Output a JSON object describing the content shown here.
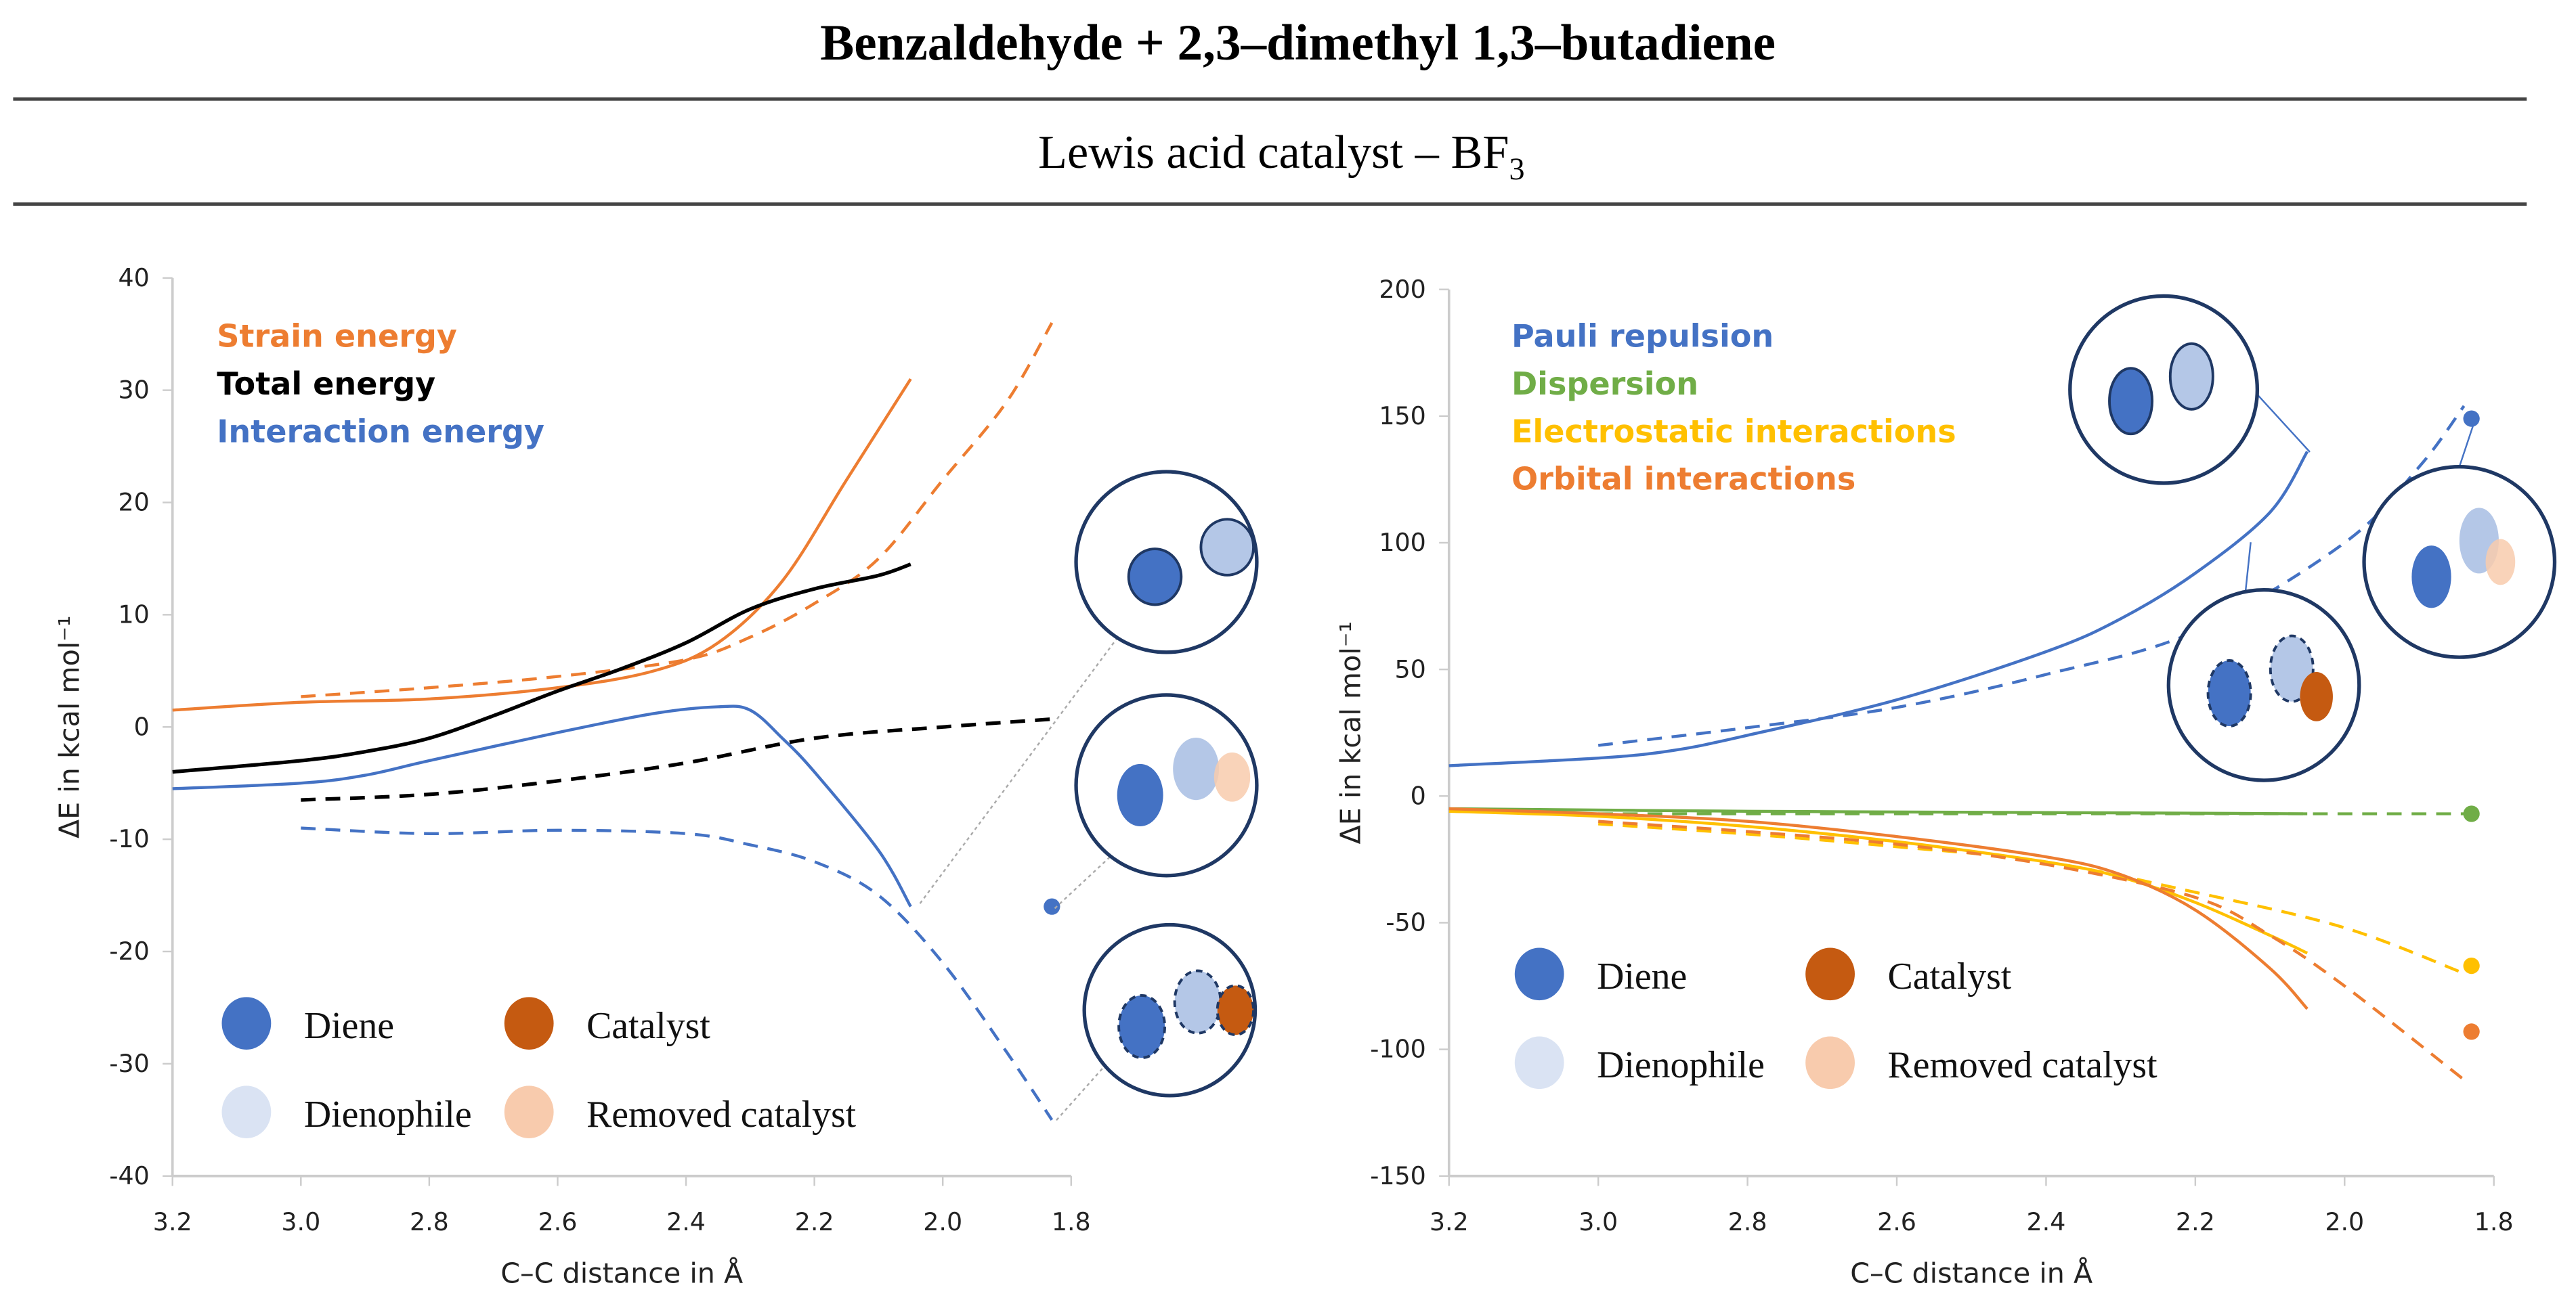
{
  "title": "Benzaldehyde + 2,3–dimethyl 1,3–butadiene",
  "subtitle": "Lewis acid catalyst – BF",
  "subtitle_sub": "3",
  "colors": {
    "blue": "#4472C4",
    "orange": "#ED7D31",
    "green": "#70AD47",
    "yellow": "#FFC000",
    "black": "#000000",
    "catalyst": "#C55A11",
    "dienophile": "#DAE3F3",
    "dienophile_inset": "#B4C7E7",
    "removed": "#F8CBAD",
    "outline": "#1F3864"
  },
  "component_legend": [
    "Diene",
    "Catalyst",
    "Dienophile",
    "Removed catalyst"
  ],
  "chart_data": [
    {
      "type": "line",
      "xlabel": "C–C distance in Å",
      "ylabel": "ΔE in kcal mol⁻¹",
      "xlim": [
        3.2,
        1.8
      ],
      "ylim": [
        -40,
        40
      ],
      "xticks": [
        "3.2",
        "3.0",
        "2.8",
        "2.6",
        "2.4",
        "2.2",
        "2.0",
        "1.8"
      ],
      "yticks": [
        "40",
        "30",
        "20",
        "10",
        "0",
        "-10",
        "-20",
        "-30",
        "-40"
      ],
      "legend": [
        "Strain energy",
        "Total energy",
        "Interaction energy"
      ],
      "series": [
        {
          "name": "Strain energy",
          "color": "orange",
          "dash": false,
          "x": [
            3.2,
            3.0,
            2.8,
            2.6,
            2.45,
            2.35,
            2.25,
            2.15,
            2.05
          ],
          "y": [
            1.5,
            2.2,
            2.5,
            3.5,
            5,
            7.5,
            13,
            22,
            31
          ]
        },
        {
          "name": "Strain energy (removed catalyst)",
          "color": "orange",
          "dash": true,
          "x": [
            3.0,
            2.8,
            2.6,
            2.4,
            2.3,
            2.2,
            2.1,
            2.0,
            1.9,
            1.83
          ],
          "y": [
            2.7,
            3.5,
            4.5,
            6,
            8,
            11,
            15,
            22,
            29,
            36
          ]
        },
        {
          "name": "Total energy",
          "color": "black",
          "dash": false,
          "x": [
            3.2,
            3.0,
            2.9,
            2.8,
            2.7,
            2.6,
            2.5,
            2.4,
            2.3,
            2.2,
            2.1,
            2.05
          ],
          "y": [
            -4,
            -3,
            -2.2,
            -1,
            1,
            3.2,
            5.2,
            7.5,
            10.5,
            12.3,
            13.5,
            14.5
          ]
        },
        {
          "name": "Total energy (removed catalyst)",
          "color": "black",
          "dash": true,
          "x": [
            3.0,
            2.8,
            2.6,
            2.4,
            2.2,
            2.0,
            1.83
          ],
          "y": [
            -6.5,
            -6,
            -4.8,
            -3.2,
            -1,
            0,
            0.7
          ]
        },
        {
          "name": "Interaction energy",
          "color": "blue",
          "dash": false,
          "x": [
            3.2,
            3.0,
            2.9,
            2.8,
            2.6,
            2.45,
            2.35,
            2.3,
            2.25,
            2.2,
            2.1,
            2.05
          ],
          "y": [
            -5.5,
            -5,
            -4.3,
            -3,
            -0.5,
            1.2,
            1.8,
            1.5,
            -1,
            -4,
            -11,
            -16
          ]
        },
        {
          "name": "Interaction energy (removed catalyst)",
          "color": "blue",
          "dash": true,
          "x": [
            3.0,
            2.8,
            2.6,
            2.4,
            2.3,
            2.2,
            2.1,
            2.0,
            1.9,
            1.83
          ],
          "y": [
            -9,
            -9.5,
            -9.2,
            -9.5,
            -10.5,
            -12,
            -15,
            -21,
            -29,
            -35
          ]
        }
      ],
      "points": [
        {
          "x": 1.83,
          "y": -16,
          "color": "blue"
        }
      ]
    },
    {
      "type": "line",
      "xlabel": "C–C distance in Å",
      "ylabel": "ΔE in kcal mol⁻¹",
      "xlim": [
        3.2,
        1.8
      ],
      "ylim": [
        -150,
        200
      ],
      "xticks": [
        "3.2",
        "3.0",
        "2.8",
        "2.6",
        "2.4",
        "2.2",
        "2.0",
        "1.8"
      ],
      "yticks": [
        "200",
        "150",
        "100",
        "50",
        "0",
        "-50",
        "-100",
        "-150"
      ],
      "legend": [
        "Pauli repulsion",
        "Dispersion",
        "Electrostatic interactions",
        "Orbital interactions"
      ],
      "series": [
        {
          "name": "Pauli repulsion",
          "color": "blue",
          "dash": false,
          "x": [
            3.2,
            3.0,
            2.9,
            2.8,
            2.6,
            2.4,
            2.3,
            2.2,
            2.1,
            2.05
          ],
          "y": [
            12,
            15,
            18,
            24,
            38,
            57,
            70,
            88,
            112,
            136
          ]
        },
        {
          "name": "Pauli repulsion (removed catalyst)",
          "color": "blue",
          "dash": true,
          "x": [
            3.0,
            2.8,
            2.6,
            2.4,
            2.2,
            2.0,
            1.9,
            1.84
          ],
          "y": [
            20,
            27,
            35,
            48,
            65,
            100,
            130,
            154
          ]
        },
        {
          "name": "Dispersion",
          "color": "green",
          "dash": false,
          "x": [
            3.2,
            2.8,
            2.4,
            2.05
          ],
          "y": [
            -5,
            -6,
            -6.5,
            -7
          ]
        },
        {
          "name": "Dispersion (removed catalyst)",
          "color": "green",
          "dash": true,
          "x": [
            3.0,
            2.5,
            2.0,
            1.83
          ],
          "y": [
            -7,
            -7,
            -7,
            -7
          ]
        },
        {
          "name": "Electrostatic interactions",
          "color": "yellow",
          "dash": false,
          "x": [
            3.2,
            3.0,
            2.8,
            2.6,
            2.4,
            2.3,
            2.2,
            2.1,
            2.05
          ],
          "y": [
            -6,
            -8,
            -12,
            -18,
            -26,
            -32,
            -42,
            -55,
            -62
          ]
        },
        {
          "name": "Electrostatic interactions (removed catalyst)",
          "color": "yellow",
          "dash": true,
          "x": [
            3.0,
            2.8,
            2.6,
            2.4,
            2.2,
            2.0,
            1.84
          ],
          "y": [
            -11,
            -15,
            -20,
            -26,
            -38,
            -52,
            -70
          ]
        },
        {
          "name": "Orbital interactions",
          "color": "orange",
          "dash": false,
          "x": [
            3.2,
            3.0,
            2.8,
            2.6,
            2.4,
            2.3,
            2.2,
            2.1,
            2.05
          ],
          "y": [
            -5,
            -7,
            -10,
            -16,
            -24,
            -31,
            -45,
            -68,
            -84
          ]
        },
        {
          "name": "Orbital interactions (removed catalyst)",
          "color": "orange",
          "dash": true,
          "x": [
            3.0,
            2.8,
            2.6,
            2.4,
            2.2,
            2.1,
            2.0,
            1.84
          ],
          "y": [
            -10,
            -14,
            -19,
            -27,
            -40,
            -55,
            -75,
            -112
          ]
        }
      ],
      "points": [
        {
          "x": 1.83,
          "y": 149,
          "color": "blue"
        },
        {
          "x": 1.83,
          "y": -7,
          "color": "green"
        },
        {
          "x": 1.83,
          "y": -67,
          "color": "yellow"
        },
        {
          "x": 1.83,
          "y": -93,
          "color": "orange"
        }
      ]
    }
  ]
}
